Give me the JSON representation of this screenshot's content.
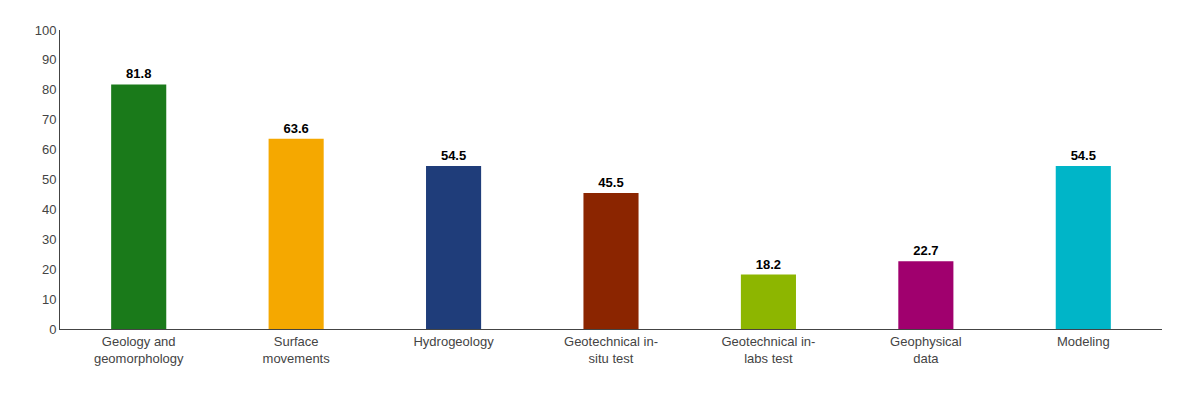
{
  "chart_data": {
    "type": "bar",
    "categories": [
      "Geology and\ngeomorphology",
      "Surface\nmovements",
      "Hydrogeology",
      "Geotechnical in-\nsitu test",
      "Geotechnical in-\nlabs test",
      "Geophysical\ndata",
      "Modeling"
    ],
    "values": [
      81.8,
      63.6,
      54.5,
      45.5,
      18.2,
      22.7,
      54.5
    ],
    "colors": [
      "#1a7a1a",
      "#f5a800",
      "#1f3d7a",
      "#8b2500",
      "#8db600",
      "#a0006e",
      "#00b5c8"
    ],
    "ylim": [
      0,
      100
    ],
    "yticks": [
      0,
      10,
      20,
      30,
      40,
      50,
      60,
      70,
      80,
      90,
      100
    ],
    "data_labels": true,
    "grid": false
  }
}
